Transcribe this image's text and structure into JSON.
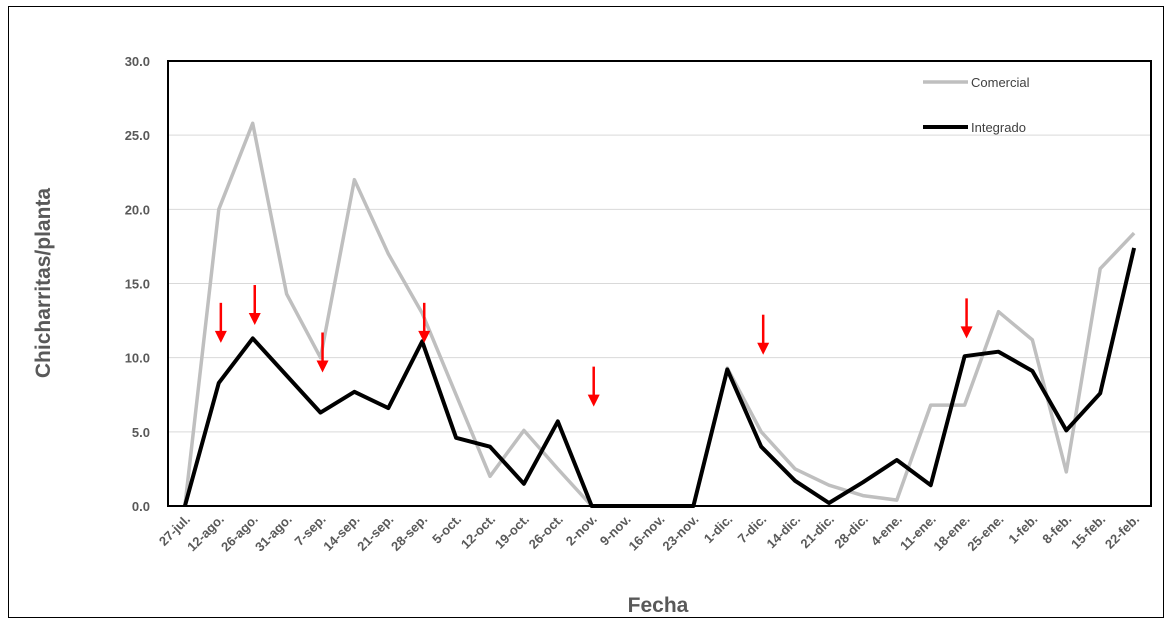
{
  "chart_data": {
    "type": "line",
    "title": "",
    "xlabel": "Fecha",
    "ylabel": "Chicharritas/planta",
    "ylim": [
      0,
      30
    ],
    "yticks": [
      "0.0",
      "5.0",
      "10.0",
      "15.0",
      "20.0",
      "25.0",
      "30.0"
    ],
    "grid": "horizontal",
    "legend_position": "top-right",
    "categories": [
      "27-jul.",
      "12-ago.",
      "26-ago.",
      "31-ago.",
      "7-sep.",
      "14-sep.",
      "21-sep.",
      "28-sep.",
      "5-oct.",
      "12-oct.",
      "19-oct.",
      "26-oct.",
      "2-nov.",
      "9-nov.",
      "16-nov.",
      "23-nov.",
      "1-dic.",
      "7-dic.",
      "14-dic.",
      "21-dic.",
      "28-dic.",
      "4-ene.",
      "11-ene.",
      "18-ene.",
      "25-ene.",
      "1-feb.",
      "8-feb.",
      "15-feb.",
      "22-feb."
    ],
    "series": [
      {
        "name": "Comercial",
        "color": "#bfbfbf",
        "values": [
          0.0,
          20.0,
          25.8,
          14.3,
          10.0,
          22.0,
          17.0,
          13.0,
          7.5,
          2.0,
          5.1,
          2.5,
          0.0,
          0.0,
          0.0,
          0.0,
          9.3,
          5.0,
          2.5,
          1.4,
          0.7,
          0.4,
          6.8,
          6.8,
          13.1,
          11.2,
          2.3,
          16.0,
          18.4
        ]
      },
      {
        "name": "Integrado",
        "color": "#000000",
        "values": [
          0.0,
          8.3,
          11.3,
          8.8,
          6.3,
          7.7,
          6.6,
          11.1,
          4.6,
          4.0,
          1.5,
          5.7,
          0.0,
          0.0,
          0.0,
          0.0,
          9.2,
          4.0,
          1.7,
          0.2,
          1.6,
          3.1,
          1.4,
          10.1,
          10.4,
          9.1,
          5.1,
          7.6,
          17.4
        ]
      }
    ],
    "annotations": {
      "type": "red-down-arrows",
      "color": "#ff0000",
      "at_categories": [
        "12-ago.",
        "26-ago.",
        "7-sep.",
        "28-sep.",
        "2-nov.",
        "7-dic.",
        "18-ene."
      ],
      "arrow_tip_values": [
        11.0,
        12.2,
        9.0,
        11.0,
        6.7,
        10.2,
        11.3
      ]
    }
  }
}
